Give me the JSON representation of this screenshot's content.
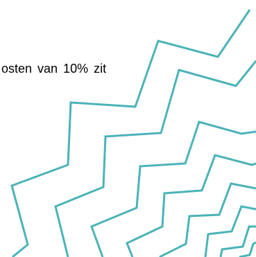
{
  "slide": {
    "text_fragment": "osten van 10% zit",
    "accent_color": "#4ab3b8"
  }
}
